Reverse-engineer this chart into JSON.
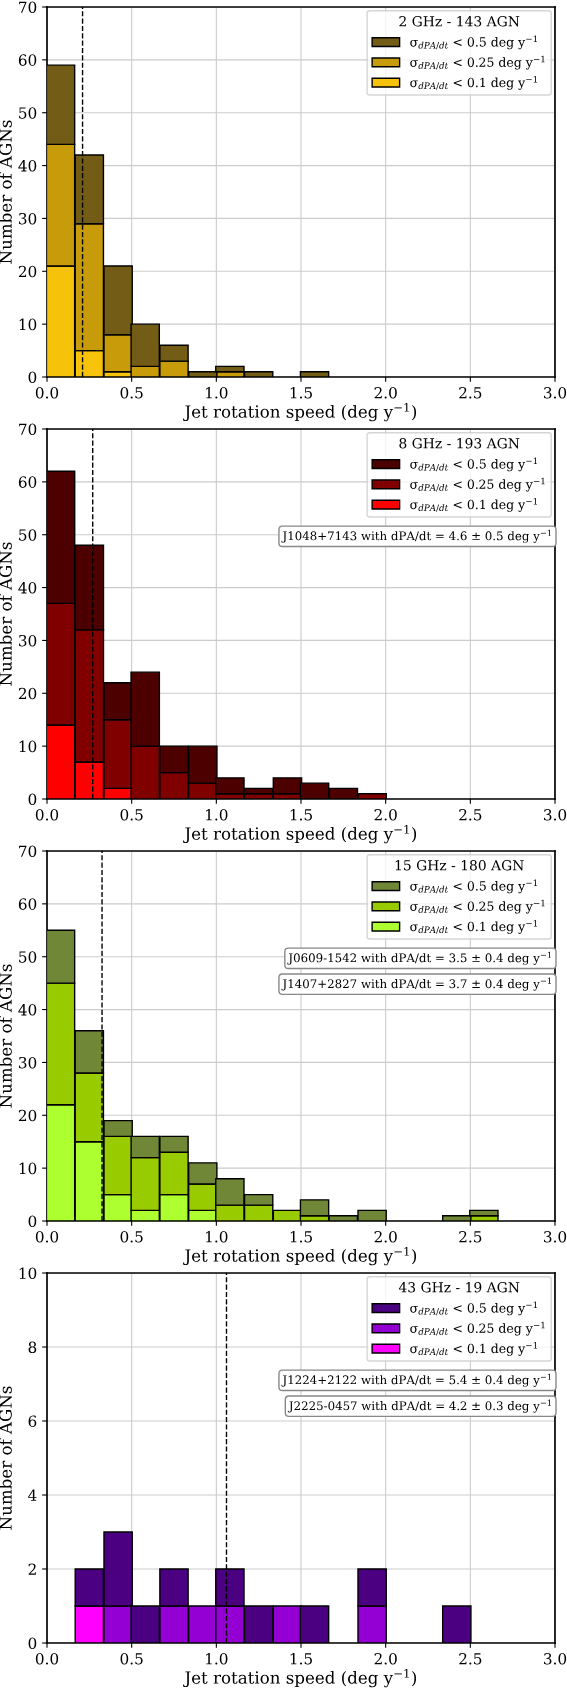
{
  "chart_data": [
    {
      "type": "bar",
      "stacked": true,
      "xlabel": "Jet rotation speed (deg y$^{−1}$)",
      "ylabel": "Number of AGNs",
      "legend_title": "2 GHz - 143 AGN",
      "legend": "top right",
      "grid": true,
      "x": [
        0.08,
        0.25,
        0.42,
        0.58,
        0.75,
        0.92,
        1.08,
        1.25,
        1.42,
        1.58
      ],
      "xlim": [
        0,
        3
      ],
      "xticks": [
        {
          "value": 0,
          "label": "0.0"
        },
        0.5,
        {
          "value": 1,
          "label": "1.0"
        },
        1.5,
        {
          "value": 2,
          "label": "2.0"
        },
        2.5,
        {
          "value": 3,
          "label": "3.0"
        }
      ],
      "ylim": [
        0,
        70
      ],
      "yticks": [
        0,
        10,
        20,
        30,
        40,
        50,
        60,
        70
      ],
      "series": [
        {
          "name": "σ$_{dPA/dt}$ < 0.1 deg y$^{−1}$",
          "color": "#f7c20a",
          "values": [
            21,
            5,
            1,
            0,
            0,
            0,
            0,
            0,
            0,
            0
          ]
        },
        {
          "name": "σ$_{dPA/dt}$ < 0.25 deg y$^{−1}$",
          "color": "#c89b0a",
          "values": [
            23,
            24,
            7,
            2,
            3,
            0,
            1,
            0,
            0,
            0
          ]
        },
        {
          "name": "σ$_{dPA/dt}$ < 0.5 deg y$^{−1}$",
          "color": "#735c16",
          "values": [
            15,
            13,
            13,
            8,
            3,
            1,
            1,
            1,
            0,
            1
          ]
        }
      ],
      "ref_lines": [
        {
          "axis": "x",
          "value": 0.21,
          "color": "#000000",
          "line_style": "dashed"
        }
      ]
    },
    {
      "type": "bar",
      "stacked": true,
      "xlabel": "Jet rotation speed (deg y$^{−1}$)",
      "ylabel": "Number of AGNs",
      "legend_title": "8 GHz - 193 AGN",
      "legend": "top right",
      "grid": true,
      "x": [
        0.08,
        0.25,
        0.42,
        0.58,
        0.75,
        0.92,
        1.08,
        1.25,
        1.42,
        1.58,
        1.75,
        1.92
      ],
      "xlim": [
        0,
        3
      ],
      "xticks": [
        {
          "value": 0,
          "label": "0.0"
        },
        0.5,
        {
          "value": 1,
          "label": "1.0"
        },
        1.5,
        {
          "value": 2,
          "label": "2.0"
        },
        2.5,
        {
          "value": 3,
          "label": "3.0"
        }
      ],
      "ylim": [
        0,
        70
      ],
      "yticks": [
        0,
        10,
        20,
        30,
        40,
        50,
        60,
        70
      ],
      "series": [
        {
          "name": "σ$_{dPA/dt}$ < 0.1 deg y$^{−1}$",
          "color": "#ff0000",
          "values": [
            14,
            7,
            2,
            0,
            0,
            0,
            0,
            0,
            0,
            0,
            0,
            0
          ]
        },
        {
          "name": "σ$_{dPA/dt}$ < 0.25 deg y$^{−1}$",
          "color": "#800000",
          "values": [
            23,
            25,
            13,
            10,
            5,
            3,
            1,
            1,
            1,
            0,
            0,
            1
          ]
        },
        {
          "name": "σ$_{dPA/dt}$ < 0.5 deg y$^{−1}$",
          "color": "#4d0000",
          "values": [
            25,
            16,
            7,
            14,
            5,
            7,
            3,
            1,
            3,
            3,
            2,
            0
          ]
        }
      ],
      "ref_lines": [
        {
          "axis": "x",
          "value": 0.27,
          "color": "#000000",
          "line_style": "dashed"
        }
      ],
      "annotations": [
        "J1048+7143 with dPA/dt = 4.6 ± 0.5 deg y$^{−1}$"
      ]
    },
    {
      "type": "bar",
      "stacked": true,
      "xlabel": "Jet rotation speed (deg y$^{−1}$)",
      "ylabel": "Number of AGNs",
      "legend_title": "15 GHz - 180 AGN",
      "legend": "top right",
      "grid": true,
      "x": [
        0.08,
        0.25,
        0.42,
        0.58,
        0.75,
        0.92,
        1.08,
        1.25,
        1.42,
        1.58,
        1.75,
        1.92,
        2.08,
        2.25,
        2.42,
        2.58
      ],
      "xlim": [
        0,
        3
      ],
      "xticks": [
        {
          "value": 0,
          "label": "0.0"
        },
        0.5,
        {
          "value": 1,
          "label": "1.0"
        },
        1.5,
        {
          "value": 2,
          "label": "2.0"
        },
        2.5,
        {
          "value": 3,
          "label": "3.0"
        }
      ],
      "ylim": [
        0,
        70
      ],
      "yticks": [
        0,
        10,
        20,
        30,
        40,
        50,
        60,
        70
      ],
      "series": [
        {
          "name": "σ$_{dPA/dt}$ < 0.1 deg y$^{−1}$",
          "color": "#adff2f",
          "values": [
            22,
            15,
            5,
            2,
            5,
            2,
            0,
            0,
            0,
            0,
            0,
            0,
            0,
            0,
            0,
            0
          ]
        },
        {
          "name": "σ$_{dPA/dt}$ < 0.25 deg y$^{−1}$",
          "color": "#99cc00",
          "values": [
            23,
            13,
            11,
            10,
            8,
            5,
            3,
            3,
            2,
            1,
            0,
            0,
            0,
            0,
            0,
            1
          ]
        },
        {
          "name": "σ$_{dPA/dt}$ < 0.5 deg y$^{−1}$",
          "color": "#708738",
          "values": [
            10,
            8,
            3,
            4,
            3,
            4,
            5,
            2,
            0,
            3,
            1,
            2,
            0,
            0,
            1,
            1
          ]
        }
      ],
      "ref_lines": [
        {
          "axis": "x",
          "value": 0.325,
          "color": "#000000",
          "line_style": "dashed"
        }
      ],
      "annotations": [
        "J0609-1542 with dPA/dt = 3.5 ± 0.4 deg y$^{−1}$",
        "J1407+2827 with dPA/dt = 3.7 ± 0.4 deg y$^{−1}$"
      ]
    },
    {
      "type": "bar",
      "stacked": true,
      "xlabel": "Jet rotation speed (deg y$^{−1}$)",
      "ylabel": "Number of AGNs",
      "legend_title": "43 GHz - 19 AGN",
      "legend": "top right",
      "grid": true,
      "x": [
        0.25,
        0.42,
        0.58,
        0.75,
        0.92,
        1.08,
        1.25,
        1.42,
        1.58,
        1.75,
        1.92,
        2.08,
        2.25,
        2.42
      ],
      "xlim": [
        0,
        3
      ],
      "xticks": [
        {
          "value": 0,
          "label": "0.0"
        },
        0.5,
        {
          "value": 1,
          "label": "1.0"
        },
        1.5,
        {
          "value": 2,
          "label": "2.0"
        },
        2.5,
        {
          "value": 3,
          "label": "3.0"
        }
      ],
      "ylim": [
        0,
        10
      ],
      "yticks": [
        0,
        2,
        4,
        6,
        8,
        10
      ],
      "series": [
        {
          "name": "σ$_{dPA/dt}$ < 0.1 deg y$^{−1}$",
          "color": "#ff00ff",
          "values": [
            1,
            0,
            0,
            0,
            0,
            0,
            0,
            0,
            0,
            0,
            0,
            0,
            0,
            0
          ]
        },
        {
          "name": "σ$_{dPA/dt}$ < 0.25 deg y$^{−1}$",
          "color": "#9400d3",
          "values": [
            0,
            1,
            0,
            1,
            1,
            1,
            0,
            1,
            0,
            0,
            1,
            0,
            0,
            0
          ]
        },
        {
          "name": "σ$_{dPA/dt}$ < 0.5 deg y$^{−1}$",
          "color": "#4b0082",
          "values": [
            1,
            2,
            1,
            1,
            0,
            1,
            1,
            0,
            1,
            0,
            1,
            0,
            0,
            1
          ]
        }
      ],
      "ref_lines": [
        {
          "axis": "x",
          "value": 1.06,
          "color": "#000000",
          "line_style": "dashed"
        }
      ],
      "annotations": [
        "J1224+2122 with dPA/dt = 5.4 ± 0.4 deg y$^{−1}$",
        "J2225-0457 with dPA/dt = 4.2 ± 0.3 deg y$^{−1}$"
      ]
    }
  ]
}
